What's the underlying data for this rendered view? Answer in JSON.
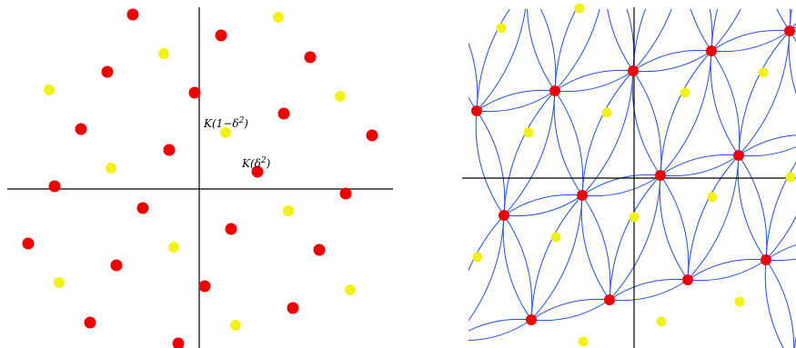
{
  "colors": {
    "red": "#ee0000",
    "yellow": "#f2f21a",
    "curve": "#1f4fe0",
    "axis": "#000000"
  },
  "left_panel": {
    "label_1": {
      "prefix": "K(1−δ",
      "exp": "2",
      "suffix": ")"
    },
    "label_2": {
      "prefix": "K(δ",
      "exp": "2",
      "suffix": ")"
    }
  }
}
